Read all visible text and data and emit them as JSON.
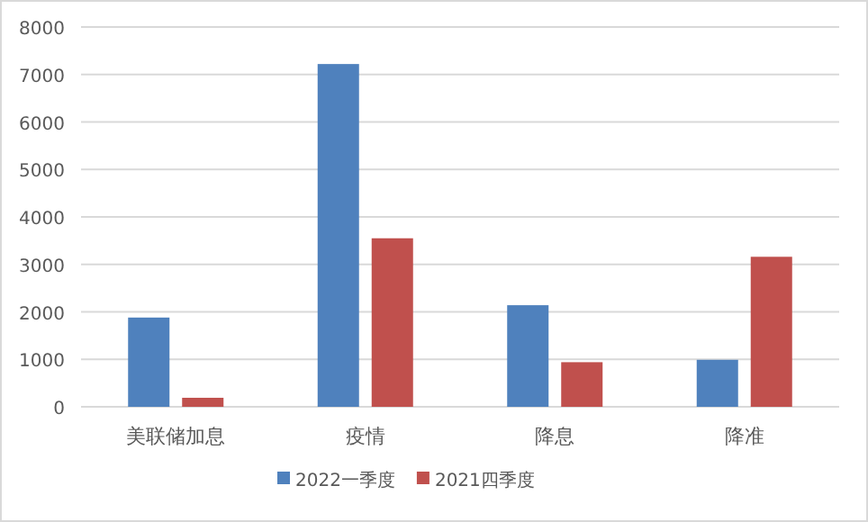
{
  "chart_data": {
    "type": "bar",
    "categories": [
      "美联储加息",
      "疫情",
      "降息",
      "降准"
    ],
    "series": [
      {
        "name": "2022一季度",
        "color": "#4f81bd",
        "values": [
          1880,
          7220,
          2140,
          990
        ]
      },
      {
        "name": "2021四季度",
        "color": "#c0504d",
        "values": [
          190,
          3550,
          940,
          3160
        ]
      }
    ],
    "ylim": [
      0,
      8000
    ],
    "yticks": [
      0,
      1000,
      2000,
      3000,
      4000,
      5000,
      6000,
      7000,
      8000
    ],
    "grid": "y",
    "legend": "bottom"
  }
}
